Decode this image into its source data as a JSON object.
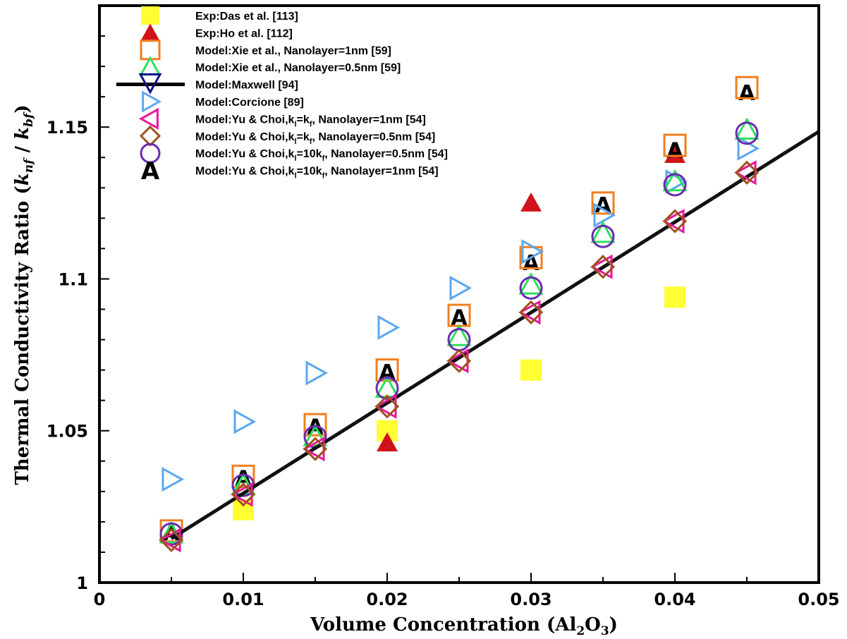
{
  "chart_data": {
    "type": "scatter",
    "xlabel": "Volume Concentration (Al2O3)",
    "xlabel_parts": {
      "main": "Volume Concentration (Al",
      "sub": "2",
      "mid": "O",
      "sub2": "3",
      "end": ")"
    },
    "ylabel": "Thermal Conductivity Ratio (knf / kbf)",
    "ylabel_parts": {
      "main": "Thermal Conductivity Ratio (",
      "k1": "k",
      "s1": "nf",
      "slash": " / ",
      "k2": "k",
      "s2": "bf",
      "end": ")"
    },
    "xlim": [
      0,
      0.05
    ],
    "ylim": [
      1,
      1.19
    ],
    "x_ticks": [
      {
        "v": 0,
        "label": "0"
      },
      {
        "v": 0.01,
        "label": "0.01"
      },
      {
        "v": 0.02,
        "label": "0.02"
      },
      {
        "v": 0.03,
        "label": "0.03"
      },
      {
        "v": 0.04,
        "label": "0.04"
      },
      {
        "v": 0.05,
        "label": "0.05"
      }
    ],
    "y_ticks": [
      {
        "v": 1,
        "label": "1"
      },
      {
        "v": 1.05,
        "label": "1.05"
      },
      {
        "v": 1.1,
        "label": "1.1"
      },
      {
        "v": 1.15,
        "label": "1.15"
      }
    ],
    "legend_position": "top-left",
    "series": [
      {
        "name": "Exp:Das et al. [113]",
        "legend": {
          "pre": "Exp:Das et al. [113]"
        },
        "marker": "square-filled",
        "color": "#ffff33",
        "points": [
          [
            0.01,
            1.024
          ],
          [
            0.02,
            1.05
          ],
          [
            0.03,
            1.07
          ],
          [
            0.04,
            1.094
          ]
        ]
      },
      {
        "name": "Exp:Ho et al. [112]",
        "legend": {
          "pre": "Exp:Ho et al. [112]"
        },
        "marker": "triangle-filled",
        "color": "#d0131a",
        "points": [
          [
            0.02,
            1.046
          ],
          [
            0.03,
            1.125
          ],
          [
            0.04,
            1.141
          ]
        ]
      },
      {
        "name": "Model:Xie et al., Nanolayer=1nm [59]",
        "legend": {
          "pre": "Model:Xie et al., Nanolayer=1nm [59]"
        },
        "marker": "square-open",
        "color": "#f07f1e",
        "points": [
          [
            0.005,
            1.017
          ],
          [
            0.01,
            1.035
          ],
          [
            0.015,
            1.052
          ],
          [
            0.02,
            1.07
          ],
          [
            0.025,
            1.088
          ],
          [
            0.03,
            1.107
          ],
          [
            0.035,
            1.125
          ],
          [
            0.04,
            1.144
          ],
          [
            0.045,
            1.163
          ]
        ]
      },
      {
        "name": "Model:Xie et al., Nanolayer=0.5nm [59]",
        "legend": {
          "pre": "Model:Xie et al., Nanolayer=0.5nm [59]"
        },
        "marker": "triangle-open",
        "color": "#2ee05a",
        "points": [
          [
            0.005,
            1.016
          ],
          [
            0.01,
            1.032
          ],
          [
            0.015,
            1.048
          ],
          [
            0.02,
            1.064
          ],
          [
            0.025,
            1.081
          ],
          [
            0.03,
            1.098
          ],
          [
            0.035,
            1.115
          ],
          [
            0.04,
            1.132
          ],
          [
            0.045,
            1.149
          ]
        ]
      },
      {
        "name": "Model:Maxwell [94]",
        "legend": {
          "pre": "Model:Maxwell [94]"
        },
        "marker": "line-with-down-triangle",
        "color": "#111111",
        "line": [
          [
            0.005,
            1.0145
          ],
          [
            0.05,
            1.1485
          ]
        ]
      },
      {
        "name": "Model:Corcione [89]",
        "legend": {
          "pre": "Model:Corcione [89]"
        },
        "marker": "triangle-right-open",
        "color": "#5aa7f0",
        "points": [
          [
            0.005,
            1.034
          ],
          [
            0.01,
            1.053
          ],
          [
            0.015,
            1.069
          ],
          [
            0.02,
            1.084
          ],
          [
            0.025,
            1.097
          ],
          [
            0.03,
            1.109
          ],
          [
            0.035,
            1.121
          ],
          [
            0.04,
            1.132
          ],
          [
            0.045,
            1.143
          ]
        ]
      },
      {
        "name": "Model:Yu & Choi,kl=kf, Nanolayer=1nm [54]",
        "legend": {
          "pre": "Model:Yu & Choi,k",
          "s1": "l",
          "mid": "=k",
          "s2": "f",
          "post": ", Nanolayer=1nm [54]"
        },
        "marker": "triangle-left-open",
        "color": "#e8189a",
        "points": [
          [
            0.005,
            1.014
          ],
          [
            0.01,
            1.029
          ],
          [
            0.015,
            1.044
          ],
          [
            0.02,
            1.058
          ],
          [
            0.025,
            1.073
          ],
          [
            0.03,
            1.089
          ],
          [
            0.035,
            1.104
          ],
          [
            0.04,
            1.119
          ],
          [
            0.045,
            1.135
          ]
        ]
      },
      {
        "name": "Model:Yu & Choi,kl=kf, Nanolayer=0.5nm [54]",
        "legend": {
          "pre": "Model:Yu & Choi,k",
          "s1": "l",
          "mid": "=k",
          "s2": "f",
          "post": ", Nanolayer=0.5nm [54]"
        },
        "marker": "diamond-open",
        "color": "#a0521e",
        "points": [
          [
            0.005,
            1.014
          ],
          [
            0.01,
            1.029
          ],
          [
            0.015,
            1.044
          ],
          [
            0.02,
            1.058
          ],
          [
            0.025,
            1.073
          ],
          [
            0.03,
            1.089
          ],
          [
            0.035,
            1.104
          ],
          [
            0.04,
            1.119
          ],
          [
            0.045,
            1.135
          ]
        ]
      },
      {
        "name": "Model:Yu & Choi,kl=10kf, Nanolayer=0.5nm [54]",
        "legend": {
          "pre": "Model:Yu & Choi,k",
          "s1": "l",
          "mid": "=10k",
          "s2": "f",
          "post": ", Nanolayer=0.5nm [54]"
        },
        "marker": "circle-open",
        "color": "#6a2bb0",
        "points": [
          [
            0.005,
            1.016
          ],
          [
            0.01,
            1.032
          ],
          [
            0.015,
            1.048
          ],
          [
            0.02,
            1.064
          ],
          [
            0.025,
            1.08
          ],
          [
            0.03,
            1.097
          ],
          [
            0.035,
            1.114
          ],
          [
            0.04,
            1.131
          ],
          [
            0.045,
            1.148
          ]
        ]
      },
      {
        "name": "Model:Yu & Choi,kl=10kf, Nanolayer=1nm [54]",
        "legend": {
          "pre": "Model:Yu & Choi,k",
          "s1": "l",
          "mid": "=10k",
          "s2": "f",
          "post": ", Nanolayer=1nm [54]"
        },
        "marker": "letter",
        "marker_text": "A",
        "color": "#000000",
        "points": [
          [
            0.005,
            1.016
          ],
          [
            0.01,
            1.034
          ],
          [
            0.015,
            1.051
          ],
          [
            0.02,
            1.069
          ],
          [
            0.025,
            1.087
          ],
          [
            0.03,
            1.105
          ],
          [
            0.035,
            1.124
          ],
          [
            0.04,
            1.142
          ],
          [
            0.045,
            1.161
          ]
        ]
      }
    ]
  }
}
